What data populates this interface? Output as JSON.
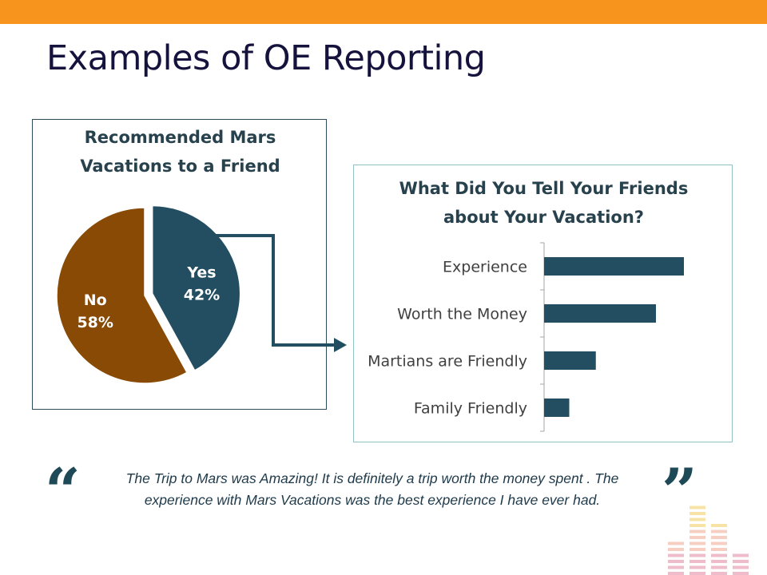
{
  "slide": {
    "title": "Examples of OE Reporting",
    "accent_color": "#f7941d",
    "title_color": "#15133d"
  },
  "pie_chart": {
    "title_line1": "Recommended Mars",
    "title_line2": "Vacations to a Friend"
  },
  "bar_chart": {
    "title_line1": "What Did You Tell Your Friends",
    "title_line2": "about Your Vacation?"
  },
  "chart_data": [
    {
      "type": "pie",
      "title": "Recommended Mars Vacations to a Friend",
      "slices": [
        {
          "label": "Yes",
          "value": 42,
          "value_label": "42%",
          "color": "#234e61",
          "exploded": true
        },
        {
          "label": "No",
          "value": 58,
          "value_label": "58%",
          "color": "#884a04",
          "exploded": false
        }
      ]
    },
    {
      "type": "bar",
      "orientation": "horizontal",
      "title": "What Did You Tell Your Friends about Your Vacation?",
      "categories": [
        "Experience",
        "Worth the Money",
        "Martians are Friendly",
        "Family Friendly"
      ],
      "values": [
        100,
        80,
        37,
        18
      ],
      "color": "#234e61",
      "xlim": [
        0,
        100
      ],
      "grid": false,
      "axis_labels_shown": false
    }
  ],
  "quote": {
    "open_mark": "“",
    "close_mark": "”",
    "line1": "The Trip to Mars was Amazing!  It is definitely a trip worth the money spent .  The",
    "line2": "experience with Mars Vacations was the best experience I have ever had."
  },
  "decor": {
    "equalizer_colors": [
      "#f6d98a",
      "#f3bfae",
      "#e8a6b8"
    ]
  }
}
